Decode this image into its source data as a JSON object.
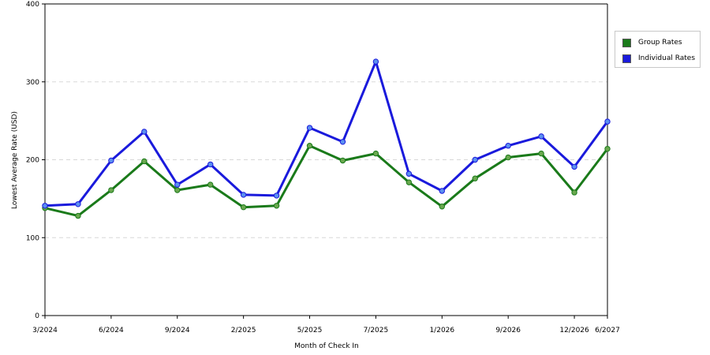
{
  "chart_data": {
    "type": "line",
    "title": "",
    "xlabel": "Month of Check In",
    "ylabel": "Lowest Average Rate (USD)",
    "ylim": [
      0,
      400
    ],
    "yticks": [
      0,
      100,
      200,
      300,
      400
    ],
    "grid": "horizontal-dashed",
    "legend_position": "right",
    "x_tick_labels": [
      "3/2024",
      "6/2024",
      "9/2024",
      "2/2025",
      "5/2025",
      "7/2025",
      "1/2026",
      "9/2026",
      "12/2026",
      "6/2027"
    ],
    "x_tick_indices": [
      0,
      2,
      4,
      6,
      8,
      10,
      12,
      14,
      16,
      17
    ],
    "num_points": 18,
    "series": [
      {
        "name": "Group Rates",
        "color": "#1a7a1a",
        "marker_color": "#6aa84f",
        "values": [
          138,
          128,
          161,
          198,
          161,
          168,
          139,
          141,
          218,
          199,
          208,
          171,
          140,
          176,
          203,
          208,
          158,
          214
        ]
      },
      {
        "name": "Individual Rates",
        "color": "#1a1adc",
        "marker_color": "#5b8ff0",
        "values": [
          141,
          143,
          199,
          236,
          168,
          194,
          155,
          154,
          241,
          223,
          326,
          182,
          160,
          200,
          218,
          230,
          191,
          249
        ]
      }
    ]
  }
}
